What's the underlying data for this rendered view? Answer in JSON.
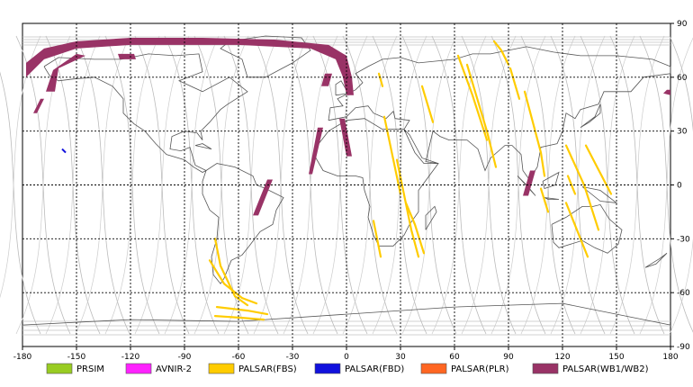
{
  "map": {
    "x_ticks": [
      "-180",
      "-150",
      "-120",
      "-90",
      "-60",
      "-30",
      "0",
      "30",
      "60",
      "90",
      "120",
      "150",
      "180"
    ],
    "y_ticks": [
      "90",
      "60",
      "30",
      "0",
      "-30",
      "-60",
      "-90"
    ],
    "xlim": [
      -180,
      180
    ],
    "ylim": [
      -90,
      90
    ],
    "grid": "dashed"
  },
  "legend": [
    {
      "label": "PRSIM",
      "color": "#99cc22"
    },
    {
      "label": "AVNIR-2",
      "color": "#ff22ff"
    },
    {
      "label": "PALSAR(FBS)",
      "color": "#ffcc00"
    },
    {
      "label": "PALSAR(FBD)",
      "color": "#1111dd"
    },
    {
      "label": "PALSAR(PLR)",
      "color": "#ff6622"
    },
    {
      "label": "PALSAR(WB1/WB2)",
      "color": "#993366"
    }
  ],
  "swaths": {
    "wb": [
      [
        [
          -178,
          68
        ],
        [
          -168,
          76
        ],
        [
          -150,
          80
        ],
        [
          -120,
          82
        ],
        [
          -80,
          82
        ],
        [
          -40,
          81
        ],
        [
          -10,
          78
        ],
        [
          0,
          72
        ],
        [
          3,
          60
        ],
        [
          4,
          50
        ],
        [
          0,
          50
        ],
        [
          -2,
          60
        ],
        [
          -6,
          70
        ],
        [
          -20,
          76
        ],
        [
          -60,
          78
        ],
        [
          -120,
          78
        ],
        [
          -150,
          76
        ],
        [
          -168,
          70
        ],
        [
          -178,
          60
        ]
      ],
      [
        [
          -160,
          65
        ],
        [
          -145,
          72
        ],
        [
          -150,
          73
        ],
        [
          -163,
          64
        ],
        [
          -167,
          52
        ],
        [
          -162,
          52
        ]
      ],
      [
        [
          -127,
          73
        ],
        [
          -118,
          73
        ],
        [
          -117,
          70
        ],
        [
          -126,
          70
        ]
      ],
      [
        [
          -16,
          32
        ],
        [
          -13,
          32
        ],
        [
          -19,
          6
        ],
        [
          -21,
          6
        ]
      ],
      [
        [
          -44,
          3
        ],
        [
          -41,
          3
        ],
        [
          -49,
          -17
        ],
        [
          -52,
          -17
        ]
      ],
      [
        [
          -4,
          37
        ],
        [
          -1,
          37
        ],
        [
          3,
          16
        ],
        [
          0,
          16
        ]
      ],
      [
        [
          102,
          8
        ],
        [
          105,
          8
        ],
        [
          101,
          -6
        ],
        [
          98,
          -6
        ]
      ],
      [
        [
          178,
          53
        ],
        [
          180,
          53
        ],
        [
          180,
          50
        ],
        [
          176,
          51
        ]
      ],
      [
        [
          -170,
          48
        ],
        [
          -168,
          48
        ],
        [
          -172,
          40
        ],
        [
          -174,
          40
        ]
      ],
      [
        [
          -12,
          62
        ],
        [
          -8,
          62
        ],
        [
          -10,
          55
        ],
        [
          -14,
          55
        ]
      ]
    ],
    "fbs": [
      [
        [
          -73,
          -30
        ],
        [
          -70,
          -45
        ],
        [
          -62,
          -62
        ],
        [
          -55,
          -67
        ]
      ],
      [
        [
          -76,
          -42
        ],
        [
          -68,
          -55
        ],
        [
          -58,
          -63
        ],
        [
          -50,
          -66
        ]
      ],
      [
        [
          -72,
          -68
        ],
        [
          -55,
          -70
        ],
        [
          -44,
          -72
        ]
      ],
      [
        [
          -73,
          -73
        ],
        [
          -58,
          -74
        ],
        [
          -46,
          -75
        ]
      ],
      [
        [
          33,
          -10
        ],
        [
          38,
          -22
        ],
        [
          43,
          -38
        ]
      ],
      [
        [
          15,
          -20
        ],
        [
          19,
          -40
        ]
      ],
      [
        [
          28,
          14
        ],
        [
          36,
          -25
        ],
        [
          40,
          -40
        ]
      ],
      [
        [
          21,
          38
        ],
        [
          30,
          -5
        ]
      ],
      [
        [
          67,
          67
        ],
        [
          78,
          30
        ],
        [
          83,
          10
        ]
      ],
      [
        [
          62,
          72
        ],
        [
          70,
          50
        ],
        [
          78,
          25
        ]
      ],
      [
        [
          82,
          80
        ],
        [
          86,
          75
        ],
        [
          90,
          67
        ]
      ],
      [
        [
          91,
          65
        ],
        [
          96,
          48
        ]
      ],
      [
        [
          99,
          52
        ],
        [
          108,
          18
        ],
        [
          110,
          5
        ]
      ],
      [
        [
          122,
          22
        ],
        [
          132,
          0
        ],
        [
          140,
          -25
        ]
      ],
      [
        [
          122,
          -10
        ],
        [
          134,
          -40
        ]
      ],
      [
        [
          133,
          22
        ],
        [
          147,
          -5
        ]
      ],
      [
        [
          123,
          5
        ],
        [
          127,
          -5
        ]
      ],
      [
        [
          42,
          55
        ],
        [
          48,
          35
        ]
      ],
      [
        [
          18,
          62
        ],
        [
          20,
          55
        ]
      ],
      [
        [
          108,
          -2
        ],
        [
          112,
          -15
        ]
      ]
    ],
    "fbd": [
      [
        [
          -158,
          20
        ],
        [
          -156,
          18
        ]
      ]
    ]
  }
}
